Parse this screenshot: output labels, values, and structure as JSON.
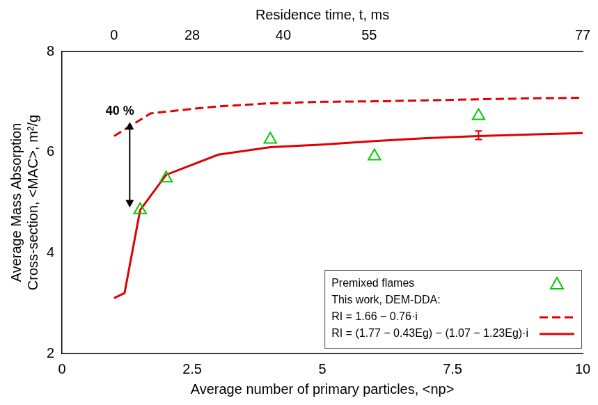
{
  "chart_data": {
    "type": "line",
    "xlabel": "Average number of primary particles, <np>",
    "ylabel": [
      "Average Mass Absorption",
      "Cross-section, <MAC>, m²/g"
    ],
    "xlim": [
      0,
      10
    ],
    "xticks": [
      0,
      2.5,
      5,
      7.5,
      10
    ],
    "ylim": [
      2,
      8
    ],
    "yticks": [
      2,
      4,
      6,
      8
    ],
    "top_axis": {
      "label": "Residence time, t, ms",
      "ticks": [
        0,
        28,
        40,
        55,
        77
      ],
      "at_x": [
        1,
        2.5,
        4.25,
        5.9,
        10
      ]
    },
    "grid": false,
    "legend": "lower right",
    "legend_header": "This work, DEM-DDA:",
    "series": [
      {
        "name": "Premixed flames",
        "type": "scatter",
        "marker": "triangle",
        "color": "#00cc00",
        "x": [
          1.5,
          2,
          4,
          6,
          8
        ],
        "values": [
          4.85,
          5.48,
          6.25,
          5.92,
          6.72
        ]
      },
      {
        "name": "RI = 1.66 − 0.76·i",
        "type": "line",
        "line_style": "dashed",
        "color": "#e00000",
        "x": [
          1,
          1.7,
          2.5,
          3,
          4,
          5,
          6,
          7,
          8,
          9,
          10
        ],
        "values": [
          6.32,
          6.77,
          6.86,
          6.91,
          6.97,
          7.0,
          7.01,
          7.03,
          7.05,
          7.07,
          7.08
        ]
      },
      {
        "name": "RI = (1.77 − 0.43Eg) − (1.07 − 1.23Eg)·i",
        "type": "line",
        "line_style": "solid",
        "color": "#e00000",
        "x": [
          1,
          1.2,
          1.5,
          2,
          3,
          4,
          5,
          6,
          7,
          8,
          9,
          10
        ],
        "values": [
          3.1,
          3.2,
          4.85,
          5.55,
          5.95,
          6.1,
          6.15,
          6.22,
          6.28,
          6.32,
          6.35,
          6.38
        ],
        "error_bars": {
          "x": [
            8
          ],
          "low": [
            6.25
          ],
          "high": [
            6.42
          ]
        }
      }
    ],
    "annotations": [
      {
        "text": "40 %",
        "x": 1.3,
        "y_from": 4.9,
        "y_to": 6.6
      }
    ]
  }
}
